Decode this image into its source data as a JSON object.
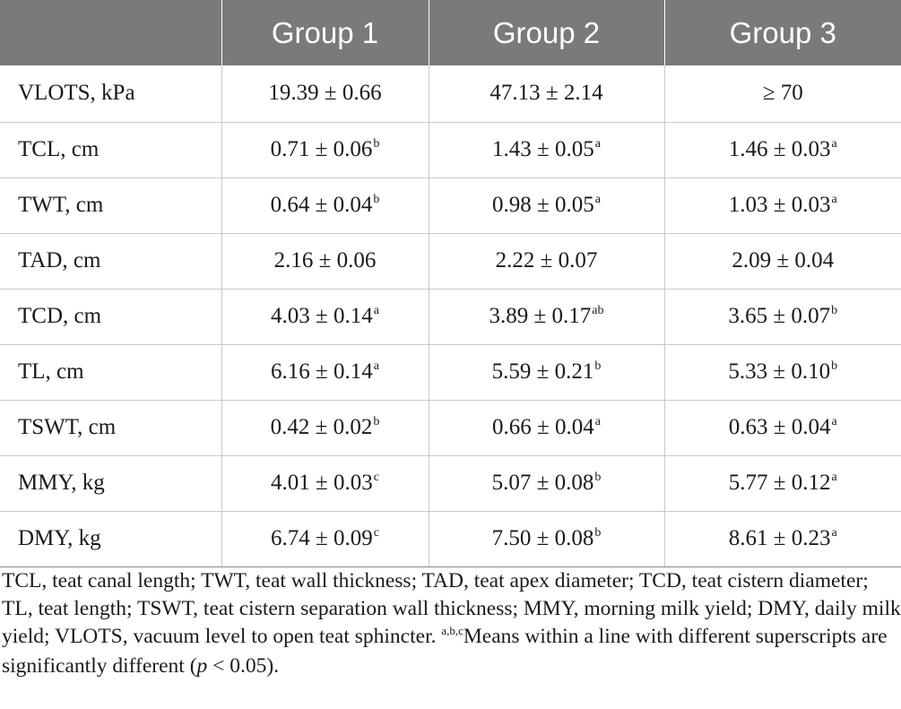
{
  "table": {
    "headers": [
      "",
      "Group 1",
      "Group 2",
      "Group 3"
    ],
    "rows": [
      {
        "label": "VLOTS, kPa",
        "cells": [
          {
            "value": "19.39 ± 0.66",
            "sup": ""
          },
          {
            "value": "47.13 ± 2.14",
            "sup": ""
          },
          {
            "value": "≥ 70",
            "sup": ""
          }
        ]
      },
      {
        "label": "TCL, cm",
        "cells": [
          {
            "value": "0.71 ± 0.06",
            "sup": "b"
          },
          {
            "value": "1.43 ± 0.05",
            "sup": "a"
          },
          {
            "value": "1.46 ± 0.03",
            "sup": "a"
          }
        ]
      },
      {
        "label": "TWT, cm",
        "cells": [
          {
            "value": "0.64 ± 0.04",
            "sup": "b"
          },
          {
            "value": "0.98 ± 0.05",
            "sup": "a"
          },
          {
            "value": "1.03 ± 0.03",
            "sup": "a"
          }
        ]
      },
      {
        "label": "TAD, cm",
        "cells": [
          {
            "value": "2.16 ± 0.06",
            "sup": ""
          },
          {
            "value": "2.22 ± 0.07",
            "sup": ""
          },
          {
            "value": "2.09 ± 0.04",
            "sup": ""
          }
        ]
      },
      {
        "label": "TCD, cm",
        "cells": [
          {
            "value": "4.03 ± 0.14",
            "sup": "a"
          },
          {
            "value": "3.89 ± 0.17",
            "sup": "ab"
          },
          {
            "value": "3.65 ± 0.07",
            "sup": "b"
          }
        ]
      },
      {
        "label": "TL, cm",
        "cells": [
          {
            "value": "6.16 ± 0.14",
            "sup": "a"
          },
          {
            "value": "5.59 ± 0.21",
            "sup": "b"
          },
          {
            "value": "5.33 ± 0.10",
            "sup": "b"
          }
        ]
      },
      {
        "label": "TSWT, cm",
        "cells": [
          {
            "value": "0.42 ± 0.02",
            "sup": "b"
          },
          {
            "value": "0.66 ± 0.04",
            "sup": "a"
          },
          {
            "value": "0.63 ± 0.04",
            "sup": "a"
          }
        ]
      },
      {
        "label": "MMY, kg",
        "cells": [
          {
            "value": "4.01 ± 0.03",
            "sup": "c"
          },
          {
            "value": "5.07 ± 0.08",
            "sup": "b"
          },
          {
            "value": "5.77 ± 0.12",
            "sup": "a"
          }
        ]
      },
      {
        "label": "DMY, kg",
        "cells": [
          {
            "value": "6.74 ± 0.09",
            "sup": "c"
          },
          {
            "value": "7.50 ± 0.08",
            "sup": "b"
          },
          {
            "value": "8.61 ± 0.23",
            "sup": "a"
          }
        ]
      }
    ]
  },
  "footnote": {
    "abbreviations": "TCL, teat canal length; TWT, teat wall thickness; TAD, teat apex diameter; TCD, teat cistern diameter; TL, teat length; TSWT, teat cistern separation wall thickness; MMY, morning milk yield; DMY, daily milk yield; VLOTS, vacuum level to open teat sphincter.",
    "sup_marks": "a,b,c",
    "means_text": "Means within a line with different superscripts are significantly different (",
    "p_symbol": "p",
    "p_value": " < 0.05)."
  },
  "colors": {
    "header_background": "#7a7a7a",
    "header_text": "#ffffff",
    "row_divider": "#c9c9c9",
    "body_text": "#1a1a1a"
  }
}
